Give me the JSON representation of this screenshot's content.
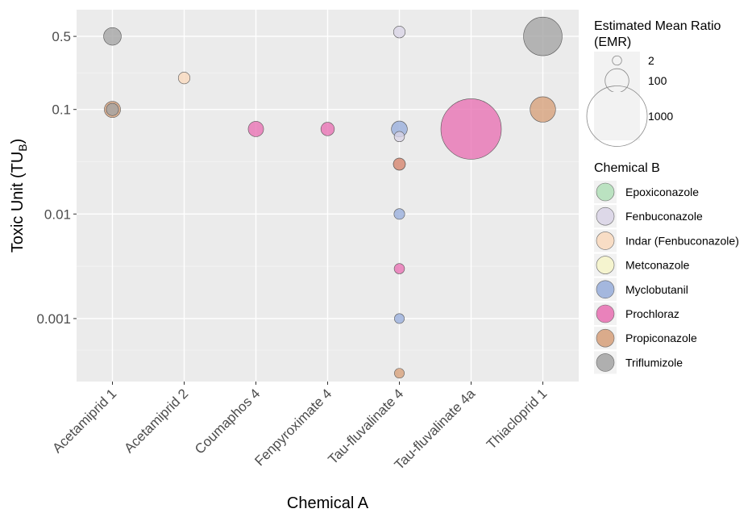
{
  "chart_data": {
    "type": "scatter",
    "title": "",
    "xlabel": "Chemical A",
    "ylabel": "Toxic Unit (TU",
    "ylabel_subscript": "B",
    "ylabel_close": ")",
    "y_scale": "log10",
    "ylim": [
      0.00025,
      0.9
    ],
    "y_ticks": [
      0.001,
      0.01,
      0.1,
      0.5
    ],
    "y_tick_labels": [
      "0.001",
      "0.01",
      "0.1",
      "0.5"
    ],
    "categories": [
      "Acetamiprid 1",
      "Acetamiprid 2",
      "Coumaphos 4",
      "Fenpyroximate 4",
      "Tau-fluvalinate 4",
      "Tau-fluvalinate 4a",
      "Thiacloprid 1"
    ],
    "grid": true,
    "legend_position": "right",
    "size_legend": {
      "title_line1": "Estimated Mean Ratio",
      "title_line2": "(EMR)",
      "values": [
        2,
        100,
        1000
      ],
      "labels": [
        "2",
        "100",
        "1000"
      ]
    },
    "color_legend": {
      "title": "Chemical B",
      "entries": [
        {
          "name": "Epoxiconazole",
          "color": "#b2dfb8"
        },
        {
          "name": "Fenbuconazole",
          "color": "#d9d3e6"
        },
        {
          "name": "Indar (Fenbuconazole)",
          "color": "#f9d9bd"
        },
        {
          "name": "Metconazole",
          "color": "#f6f5c9"
        },
        {
          "name": "Myclobutanil",
          "color": "#97addb"
        },
        {
          "name": "Prochloraz",
          "color": "#e86fb2"
        },
        {
          "name": "Propiconazole",
          "color": "#d69f79"
        },
        {
          "name": "Triflumizole",
          "color": "#a3a3a3"
        }
      ]
    },
    "points": [
      {
        "x": "Acetamiprid 1",
        "y": 0.5,
        "chemical_b": "Triflumizole",
        "emr": 40
      },
      {
        "x": "Acetamiprid 1",
        "y": 0.1,
        "chemical_b": "Propiconazole",
        "emr": 30
      },
      {
        "x": "Acetamiprid 1",
        "y": 0.1,
        "chemical_b": "Triflumizole",
        "emr": 10
      },
      {
        "x": "Acetamiprid 2",
        "y": 0.2,
        "chemical_b": "Indar (Fenbuconazole)",
        "emr": 8
      },
      {
        "x": "Coumaphos 4",
        "y": 0.065,
        "chemical_b": "Prochloraz",
        "emr": 25
      },
      {
        "x": "Fenpyroximate 4",
        "y": 0.065,
        "chemical_b": "Prochloraz",
        "emr": 15
      },
      {
        "x": "Tau-fluvalinate 4",
        "y": 0.55,
        "chemical_b": "Fenbuconazole",
        "emr": 8
      },
      {
        "x": "Tau-fluvalinate 4",
        "y": 0.065,
        "chemical_b": "Myclobutanil",
        "emr": 28
      },
      {
        "x": "Tau-fluvalinate 4",
        "y": 0.055,
        "chemical_b": "Fenbuconazole",
        "emr": 4
      },
      {
        "x": "Tau-fluvalinate 4",
        "y": 0.03,
        "chemical_b": "Prochloraz",
        "emr": 9
      },
      {
        "x": "Tau-fluvalinate 4",
        "y": 0.03,
        "chemical_b": "Propiconazole",
        "emr": 9
      },
      {
        "x": "Tau-fluvalinate 4",
        "y": 0.01,
        "chemical_b": "Myclobutanil",
        "emr": 5
      },
      {
        "x": "Tau-fluvalinate 4",
        "y": 0.003,
        "chemical_b": "Prochloraz",
        "emr": 4
      },
      {
        "x": "Tau-fluvalinate 4",
        "y": 0.001,
        "chemical_b": "Myclobutanil",
        "emr": 3
      },
      {
        "x": "Tau-fluvalinate 4",
        "y": 0.0003,
        "chemical_b": "Propiconazole",
        "emr": 3
      },
      {
        "x": "Tau-fluvalinate 4a",
        "y": 0.065,
        "chemical_b": "Prochloraz",
        "emr": 1000
      },
      {
        "x": "Thiacloprid 1",
        "y": 0.5,
        "chemical_b": "Triflumizole",
        "emr": 350
      },
      {
        "x": "Thiacloprid 1",
        "y": 0.1,
        "chemical_b": "Propiconazole",
        "emr": 120
      }
    ]
  }
}
